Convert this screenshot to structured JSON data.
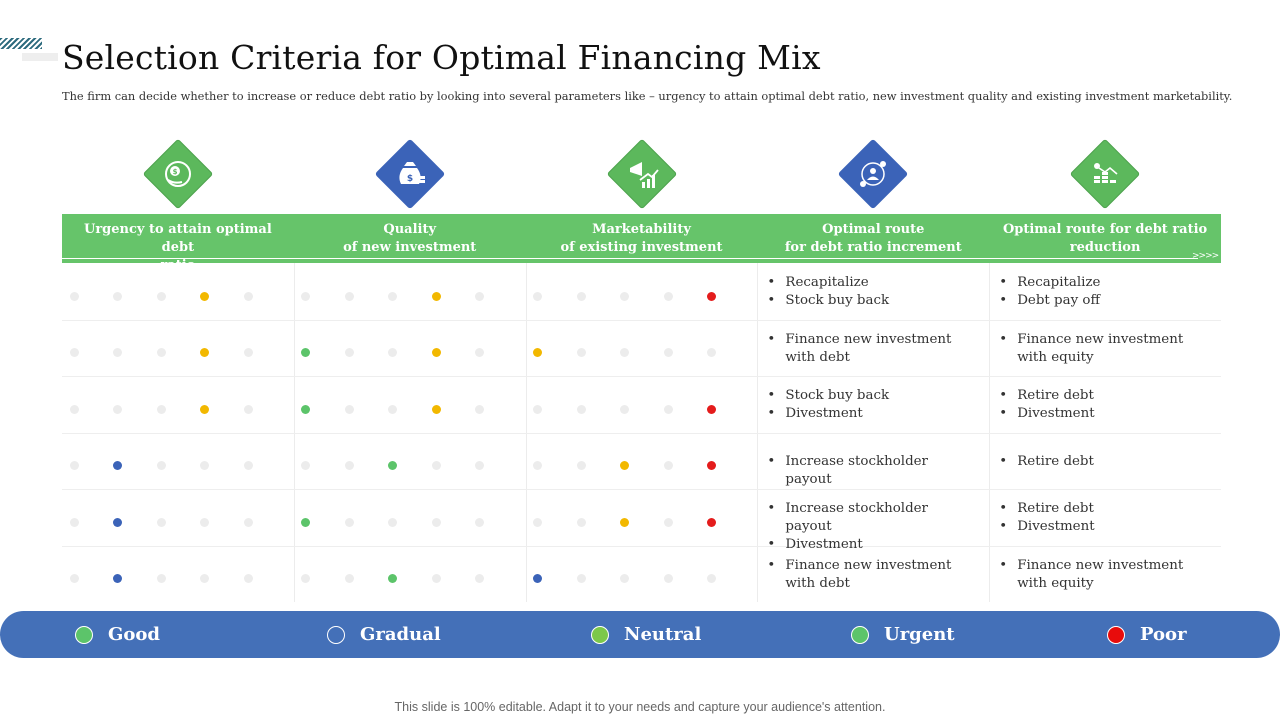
{
  "title": "Selection Criteria for Optimal Financing Mix",
  "subtitle": "The firm can decide whether to increase or reduce debt ratio by looking into several parameters like – urgency to attain optimal debt ratio, new investment quality and existing investment marketability.",
  "colors": {
    "green": "#66c46a",
    "blue": "#3b63b8",
    "yellow": "#f2b800",
    "red": "#e41c1c",
    "grey": "#ececec",
    "legend_bar": "#4470b8"
  },
  "columns": [
    {
      "icon": "dollar-coin-icon",
      "color": "green",
      "lines": [
        "Urgency to attain optimal debt",
        "ratio"
      ]
    },
    {
      "icon": "money-bag-icon",
      "color": "blue",
      "lines": [
        "Quality",
        "of new investment"
      ]
    },
    {
      "icon": "megaphone-chart-icon",
      "color": "green",
      "lines": [
        "Marketability",
        "of existing investment"
      ]
    },
    {
      "icon": "network-person-icon",
      "color": "blue",
      "lines": [
        "Optimal route",
        "for debt ratio increment"
      ]
    },
    {
      "icon": "coin-stack-chart-icon",
      "color": "green",
      "lines": [
        "Optimal route for debt ratio",
        "reduction"
      ]
    }
  ],
  "rows": [
    {
      "ratings": [
        {
          "level": 4,
          "color": "yellow"
        },
        {
          "level": 4,
          "color": "yellow"
        },
        {
          "level": 5,
          "color": "red"
        }
      ],
      "increment": [
        "Recapitalize",
        "Stock buy back"
      ],
      "reduction": [
        "Recapitalize",
        "Debt pay off"
      ]
    },
    {
      "ratings": [
        {
          "level": 4,
          "color": "yellow"
        },
        {
          "level": 1,
          "color": "green",
          "extra": {
            "level": 4,
            "color": "yellow"
          }
        },
        {
          "level": 1,
          "color": "yellow"
        }
      ],
      "increment": [
        "Finance new investment with debt"
      ],
      "reduction": [
        "Finance new investment with equity"
      ]
    },
    {
      "ratings": [
        {
          "level": 4,
          "color": "yellow"
        },
        {
          "level": 1,
          "color": "green",
          "extra": {
            "level": 4,
            "color": "yellow"
          }
        },
        {
          "level": 5,
          "color": "red"
        }
      ],
      "increment": [
        "Stock buy back",
        "Divestment"
      ],
      "reduction": [
        "Retire debt",
        "Divestment"
      ]
    },
    {
      "ratings": [
        {
          "level": 2,
          "color": "blue"
        },
        {
          "level": 3,
          "color": "green"
        },
        {
          "level": 3,
          "color": "yellow",
          "extra": {
            "level": 5,
            "color": "red"
          }
        }
      ],
      "increment": [
        "Increase stockholder payout"
      ],
      "reduction": [
        "Retire debt"
      ]
    },
    {
      "ratings": [
        {
          "level": 2,
          "color": "blue"
        },
        {
          "level": 1,
          "color": "green"
        },
        {
          "level": 3,
          "color": "yellow",
          "extra": {
            "level": 5,
            "color": "red"
          }
        }
      ],
      "increment": [
        "Increase stockholder payout",
        "Divestment"
      ],
      "reduction": [
        "Retire debt",
        "Divestment"
      ]
    },
    {
      "ratings": [
        {
          "level": 2,
          "color": "blue"
        },
        {
          "level": 3,
          "color": "green"
        },
        {
          "level": 1,
          "color": "blue"
        }
      ],
      "increment": [
        "Finance new investment with debt"
      ],
      "reduction": [
        "Finance new investment with equity"
      ]
    }
  ],
  "legend": [
    {
      "label": "Good",
      "fill": "#5cc46a",
      "border": "#ffffff"
    },
    {
      "label": "Gradual",
      "fill": "#4470b8",
      "border": "#ffffff"
    },
    {
      "label": "Neutral",
      "fill": "#7cc84a",
      "border": "#ffffff"
    },
    {
      "label": "Urgent",
      "fill": "#5cc46a",
      "border": "#ffffff"
    },
    {
      "label": "Poor",
      "fill": "#e80c0c",
      "border": "#ffffff"
    }
  ],
  "footer": "This slide is 100% editable. Adapt it to your needs and capture your audience's attention."
}
